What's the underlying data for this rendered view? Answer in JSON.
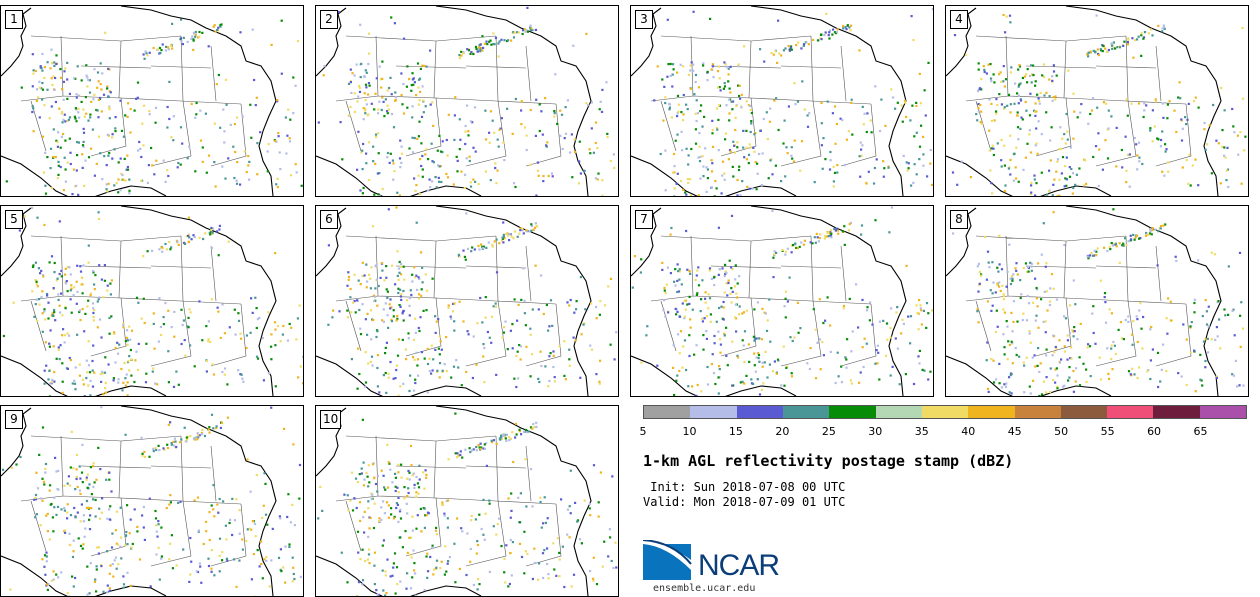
{
  "panels": [
    {
      "label": "1"
    },
    {
      "label": "2"
    },
    {
      "label": "3"
    },
    {
      "label": "4"
    },
    {
      "label": "5"
    },
    {
      "label": "6"
    },
    {
      "label": "7"
    },
    {
      "label": "8"
    },
    {
      "label": "9"
    },
    {
      "label": "10"
    }
  ],
  "colorbar": {
    "colors": [
      "#a0a0a0",
      "#b4bde8",
      "#5a5ad2",
      "#4a9696",
      "#078c07",
      "#b4d8b4",
      "#f0dc64",
      "#f0b41e",
      "#c8823c",
      "#8c5a3c",
      "#f05078",
      "#6e1e3c",
      "#aa50aa"
    ],
    "ticks": [
      "5",
      "10",
      "15",
      "20",
      "25",
      "30",
      "35",
      "40",
      "45",
      "50",
      "55",
      "60",
      "65"
    ]
  },
  "title": "1-km AGL reflectivity postage stamp (dBZ)",
  "init": " Init: Sun 2018-07-08 00 UTC",
  "valid": "Valid: Mon 2018-07-09 01 UTC",
  "logo": {
    "text": "NCAR",
    "url": "ensemble.ucar.edu",
    "colors": {
      "blue": "#0a73be",
      "navy": "#0a3d7a"
    }
  }
}
